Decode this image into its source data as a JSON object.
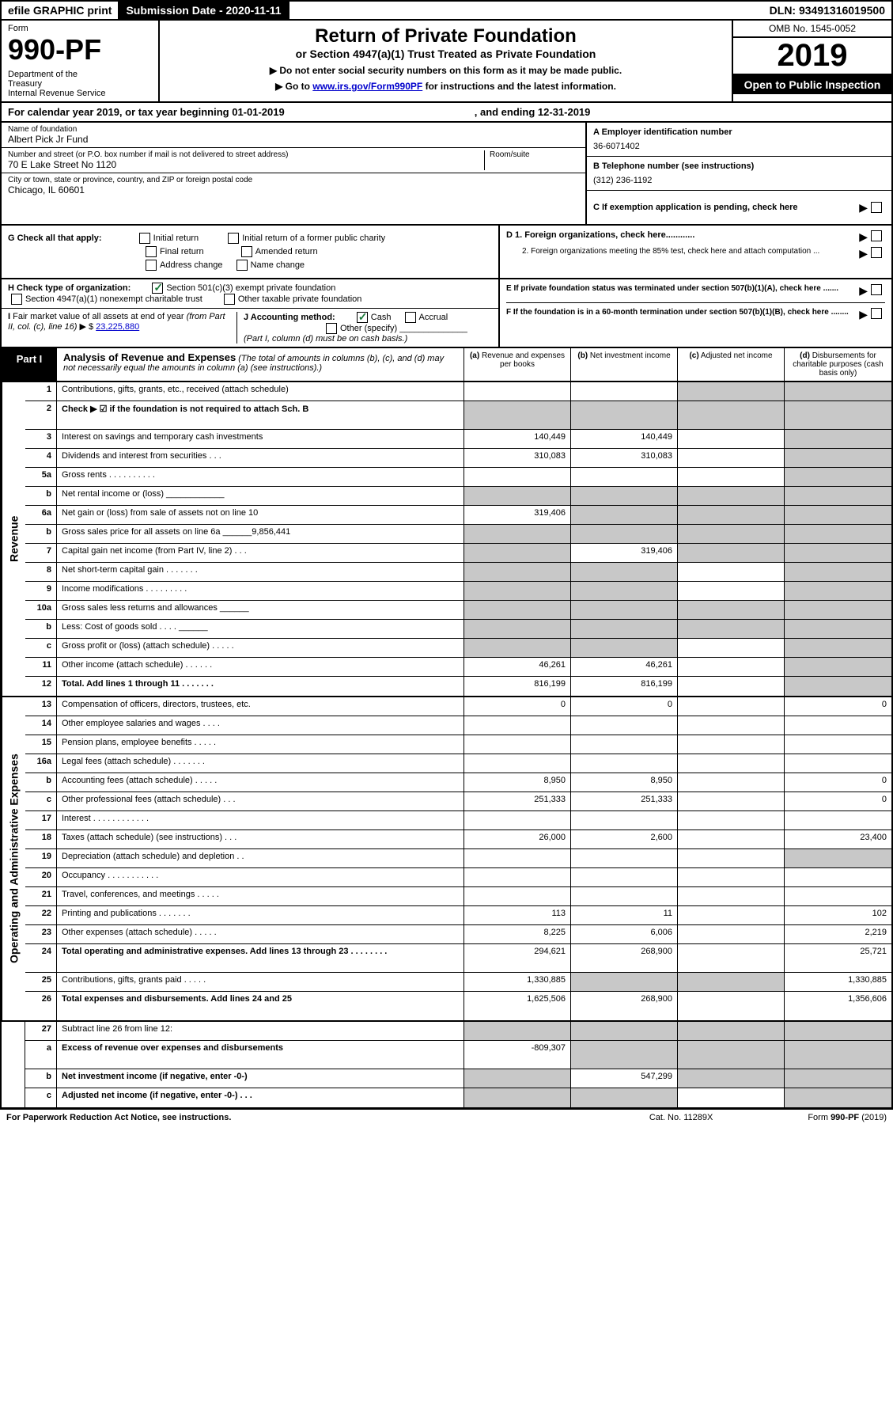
{
  "topbar": {
    "efile": "efile GRAPHIC print",
    "subdate_label": "Submission Date - 2020-11-11",
    "dln": "DLN: 93491316019500"
  },
  "header": {
    "form_word": "Form",
    "form_num": "990-PF",
    "dept": "Department of the Treasury\nInternal Revenue Service",
    "title": "Return of Private Foundation",
    "subtitle": "or Section 4947(a)(1) Trust Treated as Private Foundation",
    "note1": "▶ Do not enter social security numbers on this form as it may be made public.",
    "note2_pre": "▶ Go to ",
    "note2_link": "www.irs.gov/Form990PF",
    "note2_post": " for instructions and the latest information.",
    "omb": "OMB No. 1545-0052",
    "year": "2019",
    "inspect": "Open to Public Inspection"
  },
  "calyear": {
    "text1": "For calendar year 2019, or tax year beginning 01-01-2019",
    "text2": ", and ending 12-31-2019"
  },
  "info": {
    "name_label": "Name of foundation",
    "name": "Albert Pick Jr Fund",
    "addr_label": "Number and street (or P.O. box number if mail is not delivered to street address)",
    "addr": "70 E Lake Street No 1120",
    "room_label": "Room/suite",
    "city_label": "City or town, state or province, country, and ZIP or foreign postal code",
    "city": "Chicago, IL  60601",
    "a_label": "A Employer identification number",
    "a_val": "36-6071402",
    "b_label": "B Telephone number (see instructions)",
    "b_val": "(312) 236-1192",
    "c_label": "C If exemption application is pending, check here",
    "d1": "D 1. Foreign organizations, check here............",
    "d2": "2. Foreign organizations meeting the 85% test, check here and attach computation ...",
    "e": "E   If private foundation status was terminated under section 507(b)(1)(A), check here .......",
    "f": "F   If the foundation is in a 60-month termination under section 507(b)(1)(B), check here ........"
  },
  "g": {
    "label": "G Check all that apply:",
    "opts": [
      "Initial return",
      "Initial return of a former public charity",
      "Final return",
      "Amended return",
      "Address change",
      "Name change"
    ]
  },
  "h": {
    "label": "H Check type of organization:",
    "o1": "Section 501(c)(3) exempt private foundation",
    "o2": "Section 4947(a)(1) nonexempt charitable trust",
    "o3": "Other taxable private foundation"
  },
  "i": {
    "label": "I Fair market value of all assets at end of year (from Part II, col. (c), line 16) ▶ $",
    "val": "23,225,880"
  },
  "j": {
    "label": "J Accounting method:",
    "cash": "Cash",
    "accrual": "Accrual",
    "other": "Other (specify)",
    "note": "(Part I, column (d) must be on cash basis.)"
  },
  "part1": {
    "tab": "Part I",
    "title": "Analysis of Revenue and Expenses",
    "note": "(The total of amounts in columns (b), (c), and (d) may not necessarily equal the amounts in column (a) (see instructions).)",
    "cols": [
      "(a)   Revenue and expenses per books",
      "(b)  Net investment income",
      "(c)  Adjusted net income",
      "(d)  Disbursements for charitable purposes (cash basis only)"
    ]
  },
  "revenue_label": "Revenue",
  "expenses_label": "Operating and Administrative Expenses",
  "rows_rev": [
    {
      "n": "1",
      "l": "Contributions, gifts, grants, etc., received (attach schedule)",
      "a": "",
      "b": "",
      "c": "s",
      "d": "s"
    },
    {
      "n": "2",
      "l": "Check ▶ ☑ if the foundation is not required to attach Sch. B",
      "a": "s",
      "b": "s",
      "c": "s",
      "d": "s",
      "bold": true,
      "tall": true
    },
    {
      "n": "3",
      "l": "Interest on savings and temporary cash investments",
      "a": "140,449",
      "b": "140,449",
      "c": "",
      "d": "s"
    },
    {
      "n": "4",
      "l": "Dividends and interest from securities    .   .   .",
      "a": "310,083",
      "b": "310,083",
      "c": "",
      "d": "s"
    },
    {
      "n": "5a",
      "l": "Gross rents    .   .   .   .   .   .   .   .   .   .",
      "a": "",
      "b": "",
      "c": "",
      "d": "s"
    },
    {
      "n": "b",
      "l": "Net rental income or (loss)  ____________",
      "a": "s",
      "b": "s",
      "c": "s",
      "d": "s"
    },
    {
      "n": "6a",
      "l": "Net gain or (loss) from sale of assets not on line 10",
      "a": "319,406",
      "b": "s",
      "c": "s",
      "d": "s"
    },
    {
      "n": "b",
      "l": "Gross sales price for all assets on line 6a ______9,856,441",
      "a": "s",
      "b": "s",
      "c": "s",
      "d": "s"
    },
    {
      "n": "7",
      "l": "Capital gain net income (from Part IV, line 2)   .   .   .",
      "a": "s",
      "b": "319,406",
      "c": "s",
      "d": "s"
    },
    {
      "n": "8",
      "l": "Net short-term capital gain   .   .   .   .   .   .   .",
      "a": "s",
      "b": "s",
      "c": "",
      "d": "s"
    },
    {
      "n": "9",
      "l": "Income modifications   .   .   .   .   .   .   .   .   .",
      "a": "s",
      "b": "s",
      "c": "",
      "d": "s"
    },
    {
      "n": "10a",
      "l": "Gross sales less returns and allowances  ______",
      "a": "s",
      "b": "s",
      "c": "s",
      "d": "s"
    },
    {
      "n": "b",
      "l": "Less: Cost of goods sold    .   .   .   .  ______",
      "a": "s",
      "b": "s",
      "c": "s",
      "d": "s"
    },
    {
      "n": "c",
      "l": "Gross profit or (loss) (attach schedule)   .   .   .   .   .",
      "a": "s",
      "b": "s",
      "c": "",
      "d": "s"
    },
    {
      "n": "11",
      "l": "Other income (attach schedule)    .   .   .   .   .   .",
      "a": "46,261",
      "b": "46,261",
      "c": "",
      "d": "s"
    },
    {
      "n": "12",
      "l": "Total. Add lines 1 through 11    .   .   .   .   .   .   .",
      "a": "816,199",
      "b": "816,199",
      "c": "",
      "d": "s",
      "bold": true
    }
  ],
  "rows_exp": [
    {
      "n": "13",
      "l": "Compensation of officers, directors, trustees, etc.",
      "a": "0",
      "b": "0",
      "c": "",
      "d": "0"
    },
    {
      "n": "14",
      "l": "Other employee salaries and wages    .   .   .   .",
      "a": "",
      "b": "",
      "c": "",
      "d": ""
    },
    {
      "n": "15",
      "l": "Pension plans, employee benefits   .   .   .   .   .",
      "a": "",
      "b": "",
      "c": "",
      "d": ""
    },
    {
      "n": "16a",
      "l": "Legal fees (attach schedule)   .   .   .   .   .   .   .",
      "a": "",
      "b": "",
      "c": "",
      "d": ""
    },
    {
      "n": "b",
      "l": "Accounting fees (attach schedule)   .   .   .   .   .",
      "a": "8,950",
      "b": "8,950",
      "c": "",
      "d": "0"
    },
    {
      "n": "c",
      "l": "Other professional fees (attach schedule)    .   .   .",
      "a": "251,333",
      "b": "251,333",
      "c": "",
      "d": "0"
    },
    {
      "n": "17",
      "l": "Interest   .   .   .   .   .   .   .   .   .   .   .   .",
      "a": "",
      "b": "",
      "c": "",
      "d": ""
    },
    {
      "n": "18",
      "l": "Taxes (attach schedule) (see instructions)    .   .   .",
      "a": "26,000",
      "b": "2,600",
      "c": "",
      "d": "23,400"
    },
    {
      "n": "19",
      "l": "Depreciation (attach schedule) and depletion    .   .",
      "a": "",
      "b": "",
      "c": "",
      "d": "s"
    },
    {
      "n": "20",
      "l": "Occupancy   .   .   .   .   .   .   .   .   .   .   .",
      "a": "",
      "b": "",
      "c": "",
      "d": ""
    },
    {
      "n": "21",
      "l": "Travel, conferences, and meetings   .   .   .   .   .",
      "a": "",
      "b": "",
      "c": "",
      "d": ""
    },
    {
      "n": "22",
      "l": "Printing and publications   .   .   .   .   .   .   .",
      "a": "113",
      "b": "11",
      "c": "",
      "d": "102"
    },
    {
      "n": "23",
      "l": "Other expenses (attach schedule)   .   .   .   .   .",
      "a": "8,225",
      "b": "6,006",
      "c": "",
      "d": "2,219"
    },
    {
      "n": "24",
      "l": "Total operating and administrative expenses. Add lines 13 through 23   .   .   .   .   .   .   .   .",
      "a": "294,621",
      "b": "268,900",
      "c": "",
      "d": "25,721",
      "bold": true,
      "tall": true
    },
    {
      "n": "25",
      "l": "Contributions, gifts, grants paid    .   .   .   .   .",
      "a": "1,330,885",
      "b": "s",
      "c": "s",
      "d": "1,330,885"
    },
    {
      "n": "26",
      "l": "Total expenses and disbursements. Add lines 24 and 25",
      "a": "1,625,506",
      "b": "268,900",
      "c": "",
      "d": "1,356,606",
      "bold": true,
      "tall": true
    }
  ],
  "rows_27": [
    {
      "n": "27",
      "l": "Subtract line 26 from line 12:",
      "a": "s",
      "b": "s",
      "c": "s",
      "d": "s"
    },
    {
      "n": "a",
      "l": "Excess of revenue over expenses and disbursements",
      "a": "-809,307",
      "b": "s",
      "c": "s",
      "d": "s",
      "bold": true,
      "tall": true
    },
    {
      "n": "b",
      "l": "Net investment income (if negative, enter -0-)",
      "a": "s",
      "b": "547,299",
      "c": "s",
      "d": "s",
      "bold": true
    },
    {
      "n": "c",
      "l": "Adjusted net income (if negative, enter -0-)   .   .   .",
      "a": "s",
      "b": "s",
      "c": "",
      "d": "s",
      "bold": true
    }
  ],
  "footer": {
    "left": "For Paperwork Reduction Act Notice, see instructions.",
    "center": "Cat. No. 11289X",
    "right": "Form 990-PF (2019)"
  }
}
